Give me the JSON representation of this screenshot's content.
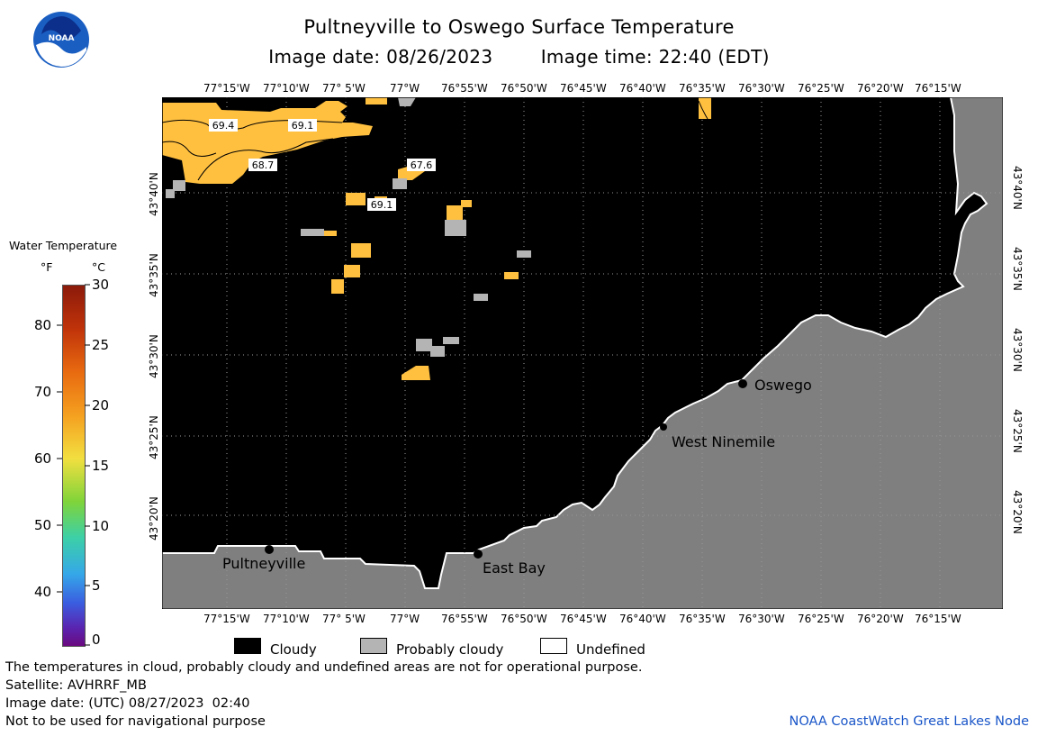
{
  "header": {
    "title": "Pultneyville to Oswego Surface Temperature",
    "subtitle_date": "Image date: 08/26/2023",
    "subtitle_time": "Image time: 22:40 (EDT)",
    "logo_text": "NOAA"
  },
  "map": {
    "lon_labels": [
      "77°15'W",
      "77°10'W",
      "77° 5'W",
      "77°W",
      "76°55'W",
      "76°50'W",
      "76°45'W",
      "76°40'W",
      "76°35'W",
      "76°30'W",
      "76°25'W",
      "76°20'W",
      "76°15'W"
    ],
    "lat_labels": [
      "43°40'N",
      "43°35'N",
      "43°30'N",
      "43°25'N",
      "43°20'N"
    ],
    "temp_labels": [
      "69.4",
      "69.1",
      "68.7",
      "67.6",
      "69.1"
    ],
    "places": {
      "oswego": "Oswego",
      "west_ninemile": "West Ninemile",
      "pultneyville": "Pultneyville",
      "east_bay": "East Bay"
    },
    "colors": {
      "cloud": "#000000",
      "land": "#7f7f7f",
      "probably_cloudy": "#b4b4b4",
      "water_warm": "#ffc040"
    }
  },
  "colorbar": {
    "title": "Water Temperature",
    "unit_f": "°F",
    "unit_c": "°C",
    "f_labels": [
      "80",
      "70",
      "60",
      "50",
      "40"
    ],
    "c_labels": [
      "30",
      "25",
      "20",
      "15",
      "10",
      "5",
      "0"
    ],
    "f_values": [
      80,
      70,
      60,
      50,
      40
    ],
    "c_values": [
      30,
      25,
      20,
      15,
      10,
      5,
      0
    ]
  },
  "legend": {
    "cloudy": "Cloudy",
    "probably_cloudy": "Probably cloudy",
    "undefined": "Undefined"
  },
  "footer": {
    "note": "The temperatures in cloud, probably cloudy and undefined areas are not for operational purpose.",
    "satellite": "Satellite: AVHRRF_MB",
    "utc_date": "Image date: (UTC) 08/27/2023  02:40",
    "nav_warning": "Not to be used for navigational purpose",
    "credit": "NOAA CoastWatch Great Lakes Node"
  }
}
